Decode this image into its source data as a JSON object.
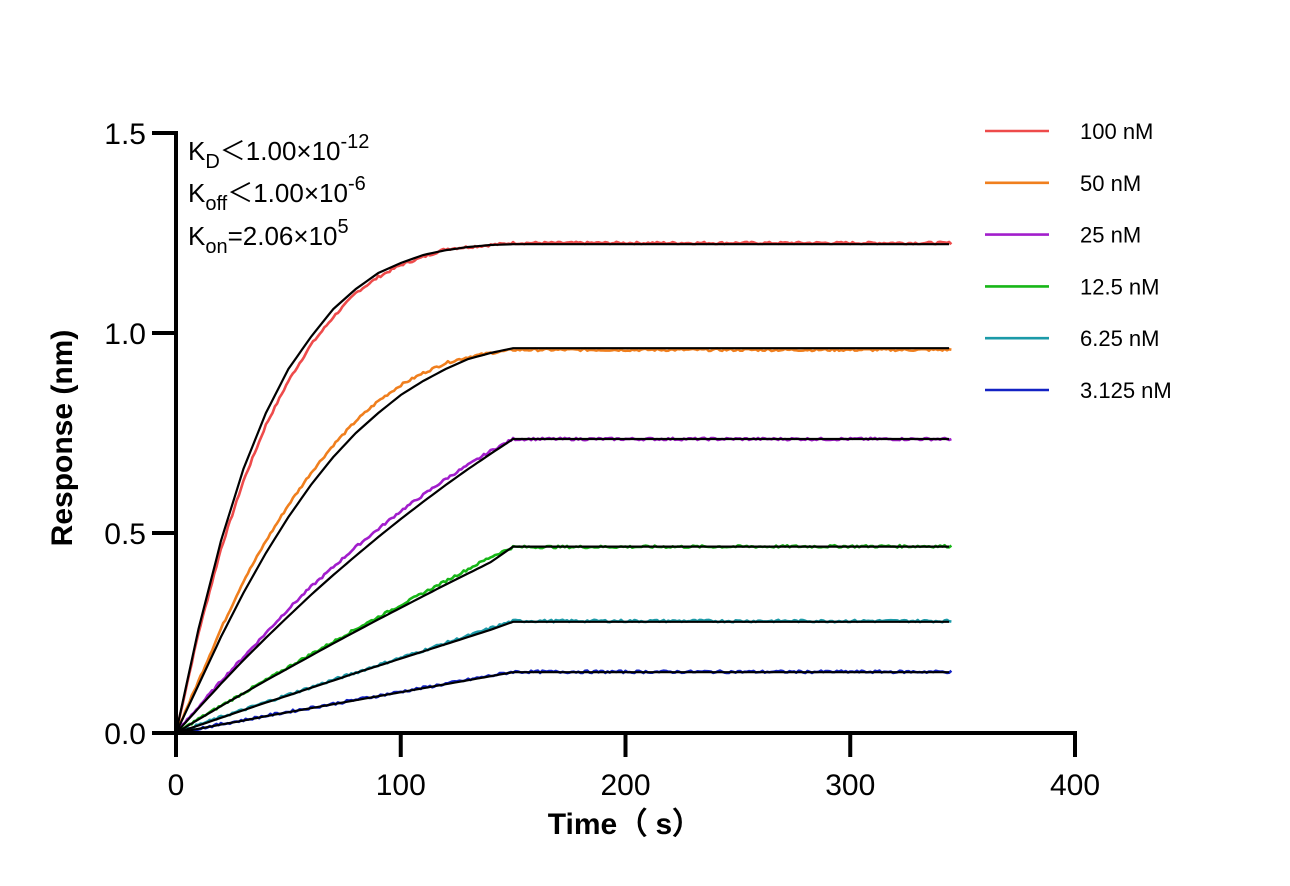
{
  "chart_data": {
    "type": "line",
    "xlabel": "Time（ s）",
    "ylabel": "Response (nm)",
    "xlim": [
      0,
      400
    ],
    "ylim": [
      0,
      1.5
    ],
    "x_ticks": [
      "0",
      "100",
      "200",
      "300",
      "400"
    ],
    "y_ticks": [
      "0.0",
      "0.5",
      "1.0",
      "1.5"
    ],
    "grid": false,
    "legend_position": "top-right",
    "annotations": {
      "kd": {
        "base": "K",
        "sub": "D",
        "text": "＜1.00×10",
        "sup": "-12"
      },
      "koff": {
        "base": "K",
        "sub": "off",
        "text": "＜1.00×10",
        "sup": "-6"
      },
      "kon": {
        "base": "K",
        "sub": "on",
        "text": "=2.06×10",
        "sup": "5"
      }
    },
    "association_end": 150,
    "x_end": 345,
    "fit_color": "#000000",
    "series": [
      {
        "name": "100 nM",
        "color": "#ee4b4b",
        "points": [
          [
            0,
            0
          ],
          [
            10,
            0.25
          ],
          [
            20,
            0.46
          ],
          [
            30,
            0.63
          ],
          [
            40,
            0.77
          ],
          [
            50,
            0.88
          ],
          [
            60,
            0.97
          ],
          [
            70,
            1.04
          ],
          [
            80,
            1.1
          ],
          [
            90,
            1.14
          ],
          [
            100,
            1.17
          ],
          [
            110,
            1.19
          ],
          [
            120,
            1.21
          ],
          [
            130,
            1.215
          ],
          [
            140,
            1.22
          ],
          [
            150,
            1.225
          ],
          [
            345,
            1.225
          ]
        ],
        "fit": [
          [
            0,
            0
          ],
          [
            10,
            0.26
          ],
          [
            20,
            0.48
          ],
          [
            30,
            0.66
          ],
          [
            40,
            0.8
          ],
          [
            50,
            0.91
          ],
          [
            60,
            0.99
          ],
          [
            70,
            1.06
          ],
          [
            80,
            1.11
          ],
          [
            90,
            1.15
          ],
          [
            100,
            1.175
          ],
          [
            110,
            1.195
          ],
          [
            120,
            1.207
          ],
          [
            130,
            1.215
          ],
          [
            140,
            1.22
          ],
          [
            150,
            1.222
          ],
          [
            345,
            1.222
          ]
        ]
      },
      {
        "name": "50 nM",
        "color": "#f07f1e",
        "points": [
          [
            0,
            0
          ],
          [
            10,
            0.13
          ],
          [
            20,
            0.26
          ],
          [
            30,
            0.38
          ],
          [
            40,
            0.48
          ],
          [
            50,
            0.57
          ],
          [
            60,
            0.65
          ],
          [
            70,
            0.72
          ],
          [
            80,
            0.78
          ],
          [
            90,
            0.83
          ],
          [
            100,
            0.87
          ],
          [
            110,
            0.9
          ],
          [
            120,
            0.925
          ],
          [
            130,
            0.94
          ],
          [
            140,
            0.95
          ],
          [
            150,
            0.958
          ],
          [
            345,
            0.958
          ]
        ],
        "fit": [
          [
            0,
            0
          ],
          [
            10,
            0.12
          ],
          [
            20,
            0.24
          ],
          [
            30,
            0.35
          ],
          [
            40,
            0.45
          ],
          [
            50,
            0.54
          ],
          [
            60,
            0.62
          ],
          [
            70,
            0.69
          ],
          [
            80,
            0.75
          ],
          [
            90,
            0.8
          ],
          [
            100,
            0.845
          ],
          [
            110,
            0.88
          ],
          [
            120,
            0.91
          ],
          [
            130,
            0.935
          ],
          [
            140,
            0.95
          ],
          [
            150,
            0.962
          ],
          [
            345,
            0.962
          ]
        ]
      },
      {
        "name": "25 nM",
        "color": "#a21ecc",
        "points": [
          [
            0,
            0
          ],
          [
            10,
            0.065
          ],
          [
            20,
            0.13
          ],
          [
            30,
            0.19
          ],
          [
            40,
            0.25
          ],
          [
            50,
            0.31
          ],
          [
            60,
            0.365
          ],
          [
            70,
            0.415
          ],
          [
            80,
            0.465
          ],
          [
            90,
            0.51
          ],
          [
            100,
            0.555
          ],
          [
            110,
            0.595
          ],
          [
            120,
            0.635
          ],
          [
            130,
            0.67
          ],
          [
            140,
            0.705
          ],
          [
            150,
            0.735
          ],
          [
            345,
            0.735
          ]
        ],
        "fit": [
          [
            0,
            0
          ],
          [
            10,
            0.062
          ],
          [
            20,
            0.123
          ],
          [
            30,
            0.182
          ],
          [
            40,
            0.238
          ],
          [
            50,
            0.292
          ],
          [
            60,
            0.345
          ],
          [
            70,
            0.395
          ],
          [
            80,
            0.443
          ],
          [
            90,
            0.49
          ],
          [
            100,
            0.535
          ],
          [
            110,
            0.578
          ],
          [
            120,
            0.62
          ],
          [
            130,
            0.66
          ],
          [
            140,
            0.698
          ],
          [
            150,
            0.735
          ],
          [
            345,
            0.735
          ]
        ]
      },
      {
        "name": "12.5 nM",
        "color": "#17b617",
        "points": [
          [
            0,
            0
          ],
          [
            10,
            0.035
          ],
          [
            20,
            0.068
          ],
          [
            30,
            0.1
          ],
          [
            40,
            0.132
          ],
          [
            50,
            0.165
          ],
          [
            60,
            0.197
          ],
          [
            70,
            0.228
          ],
          [
            80,
            0.26
          ],
          [
            90,
            0.29
          ],
          [
            100,
            0.32
          ],
          [
            110,
            0.35
          ],
          [
            120,
            0.38
          ],
          [
            130,
            0.41
          ],
          [
            140,
            0.44
          ],
          [
            150,
            0.465
          ],
          [
            345,
            0.467
          ]
        ],
        "fit": [
          [
            0,
            0
          ],
          [
            10,
            0.034
          ],
          [
            20,
            0.067
          ],
          [
            30,
            0.099
          ],
          [
            40,
            0.131
          ],
          [
            50,
            0.162
          ],
          [
            60,
            0.193
          ],
          [
            70,
            0.224
          ],
          [
            80,
            0.254
          ],
          [
            90,
            0.284
          ],
          [
            100,
            0.313
          ],
          [
            110,
            0.342
          ],
          [
            120,
            0.371
          ],
          [
            130,
            0.399
          ],
          [
            140,
            0.427
          ],
          [
            150,
            0.466
          ],
          [
            345,
            0.466
          ]
        ]
      },
      {
        "name": "6.25 nM",
        "color": "#1b9aa8",
        "points": [
          [
            0,
            0
          ],
          [
            10,
            0.02
          ],
          [
            20,
            0.04
          ],
          [
            30,
            0.058
          ],
          [
            40,
            0.077
          ],
          [
            50,
            0.096
          ],
          [
            60,
            0.114
          ],
          [
            70,
            0.133
          ],
          [
            80,
            0.151
          ],
          [
            90,
            0.17
          ],
          [
            100,
            0.188
          ],
          [
            110,
            0.206
          ],
          [
            120,
            0.225
          ],
          [
            130,
            0.243
          ],
          [
            140,
            0.262
          ],
          [
            150,
            0.28
          ],
          [
            345,
            0.28
          ]
        ],
        "fit": [
          [
            0,
            0
          ],
          [
            10,
            0.019
          ],
          [
            20,
            0.038
          ],
          [
            30,
            0.057
          ],
          [
            40,
            0.076
          ],
          [
            50,
            0.094
          ],
          [
            60,
            0.113
          ],
          [
            70,
            0.131
          ],
          [
            80,
            0.15
          ],
          [
            90,
            0.168
          ],
          [
            100,
            0.186
          ],
          [
            110,
            0.204
          ],
          [
            120,
            0.222
          ],
          [
            130,
            0.24
          ],
          [
            140,
            0.258
          ],
          [
            150,
            0.278
          ],
          [
            345,
            0.278
          ]
        ]
      },
      {
        "name": "3.125 nM",
        "color": "#1322c4",
        "points": [
          [
            0,
            0
          ],
          [
            10,
            0.011
          ],
          [
            20,
            0.022
          ],
          [
            30,
            0.032
          ],
          [
            40,
            0.043
          ],
          [
            50,
            0.053
          ],
          [
            60,
            0.063
          ],
          [
            70,
            0.073
          ],
          [
            80,
            0.083
          ],
          [
            90,
            0.093
          ],
          [
            100,
            0.103
          ],
          [
            110,
            0.113
          ],
          [
            120,
            0.123
          ],
          [
            130,
            0.133
          ],
          [
            140,
            0.143
          ],
          [
            150,
            0.153
          ],
          [
            345,
            0.153
          ]
        ],
        "fit": [
          [
            0,
            0
          ],
          [
            10,
            0.0105
          ],
          [
            20,
            0.021
          ],
          [
            30,
            0.031
          ],
          [
            40,
            0.042
          ],
          [
            50,
            0.052
          ],
          [
            60,
            0.062
          ],
          [
            70,
            0.072
          ],
          [
            80,
            0.082
          ],
          [
            90,
            0.092
          ],
          [
            100,
            0.102
          ],
          [
            110,
            0.112
          ],
          [
            120,
            0.122
          ],
          [
            130,
            0.132
          ],
          [
            140,
            0.142
          ],
          [
            150,
            0.152
          ],
          [
            345,
            0.152
          ]
        ]
      }
    ]
  }
}
